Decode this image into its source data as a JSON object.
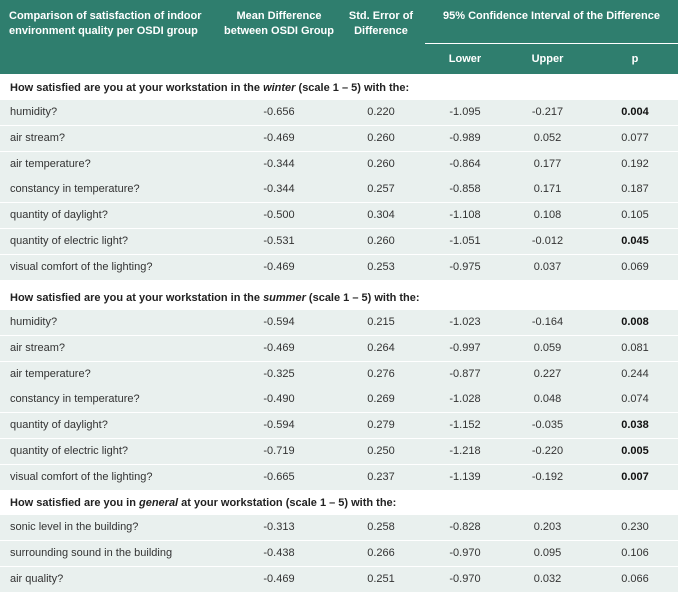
{
  "header": {
    "comparison": "Comparison of satisfaction of indoor environment quality per OSDI group",
    "mean": "Mean Difference between OSDI Group",
    "std_error": "Std. Error of Difference",
    "ci": "95% Confidence Interval of the Difference",
    "lower": "Lower",
    "upper": "Upper",
    "p": "p"
  },
  "sections": [
    {
      "title_before": "How satisfied are you at your workstation in the ",
      "title_em": "winter",
      "title_after": " (scale 1 – 5) with the:",
      "rows": [
        {
          "label": "humidity?",
          "mean": "-0.656",
          "se": "0.220",
          "lower": "-1.095",
          "upper": "-0.217",
          "p": "0.004",
          "sig": true
        },
        {
          "label": "air stream?",
          "mean": "-0.469",
          "se": "0.260",
          "lower": "-0.989",
          "upper": "0.052",
          "p": "0.077",
          "sig": false
        },
        {
          "label": "air temperature?",
          "mean": "-0.344",
          "se": "0.260",
          "lower": "-0.864",
          "upper": "0.177",
          "p": "0.192",
          "sig": false
        },
        {
          "label": "constancy in temperature?",
          "mean": "-0.344",
          "se": "0.257",
          "lower": "-0.858",
          "upper": "0.171",
          "p": "0.187",
          "sig": false
        },
        {
          "label": "quantity of daylight?",
          "mean": "-0.500",
          "se": "0.304",
          "lower": "-1.108",
          "upper": "0.108",
          "p": "0.105",
          "sig": false
        },
        {
          "label": "quantity of electric light?",
          "mean": "-0.531",
          "se": "0.260",
          "lower": "-1.051",
          "upper": "-0.012",
          "p": "0.045",
          "sig": true
        },
        {
          "label": "visual comfort of the lighting?",
          "mean": "-0.469",
          "se": "0.253",
          "lower": "-0.975",
          "upper": "0.037",
          "p": "0.069",
          "sig": false
        }
      ]
    },
    {
      "title_before": "How satisfied are you at your workstation in the ",
      "title_em": "summer",
      "title_after": " (scale 1 – 5) with the:",
      "rows": [
        {
          "label": "humidity?",
          "mean": "-0.594",
          "se": "0.215",
          "lower": "-1.023",
          "upper": "-0.164",
          "p": "0.008",
          "sig": true
        },
        {
          "label": "air stream?",
          "mean": "-0.469",
          "se": "0.264",
          "lower": "-0.997",
          "upper": "0.059",
          "p": "0.081",
          "sig": false
        },
        {
          "label": "air temperature?",
          "mean": "-0.325",
          "se": "0.276",
          "lower": "-0.877",
          "upper": "0.227",
          "p": "0.244",
          "sig": false
        },
        {
          "label": "constancy in temperature?",
          "mean": "-0.490",
          "se": "0.269",
          "lower": "-1.028",
          "upper": "0.048",
          "p": "0.074",
          "sig": false
        },
        {
          "label": "quantity of daylight?",
          "mean": "-0.594",
          "se": "0.279",
          "lower": "-1.152",
          "upper": "-0.035",
          "p": "0.038",
          "sig": true
        },
        {
          "label": "quantity of electric light?",
          "mean": "-0.719",
          "se": "0.250",
          "lower": "-1.218",
          "upper": "-0.220",
          "p": "0.005",
          "sig": true
        },
        {
          "label": "visual comfort of the lighting?",
          "mean": "-0.665",
          "se": "0.237",
          "lower": "-1.139",
          "upper": "-0.192",
          "p": "0.007",
          "sig": true
        }
      ]
    },
    {
      "title_before": "How satisfied are you in ",
      "title_em": "general",
      "title_after": " at your workstation (scale 1 – 5) with the:",
      "rows": [
        {
          "label": "sonic level in the building?",
          "mean": "-0.313",
          "se": "0.258",
          "lower": "-0.828",
          "upper": "0.203",
          "p": "0.230",
          "sig": false
        },
        {
          "label": "surrounding sound in the building",
          "mean": "-0.438",
          "se": "0.266",
          "lower": "-0.970",
          "upper": "0.095",
          "p": "0.106",
          "sig": false
        },
        {
          "label": "air quality?",
          "mean": "-0.469",
          "se": "0.251",
          "lower": "-0.970",
          "upper": "0.032",
          "p": "0.066",
          "sig": false
        }
      ]
    }
  ]
}
